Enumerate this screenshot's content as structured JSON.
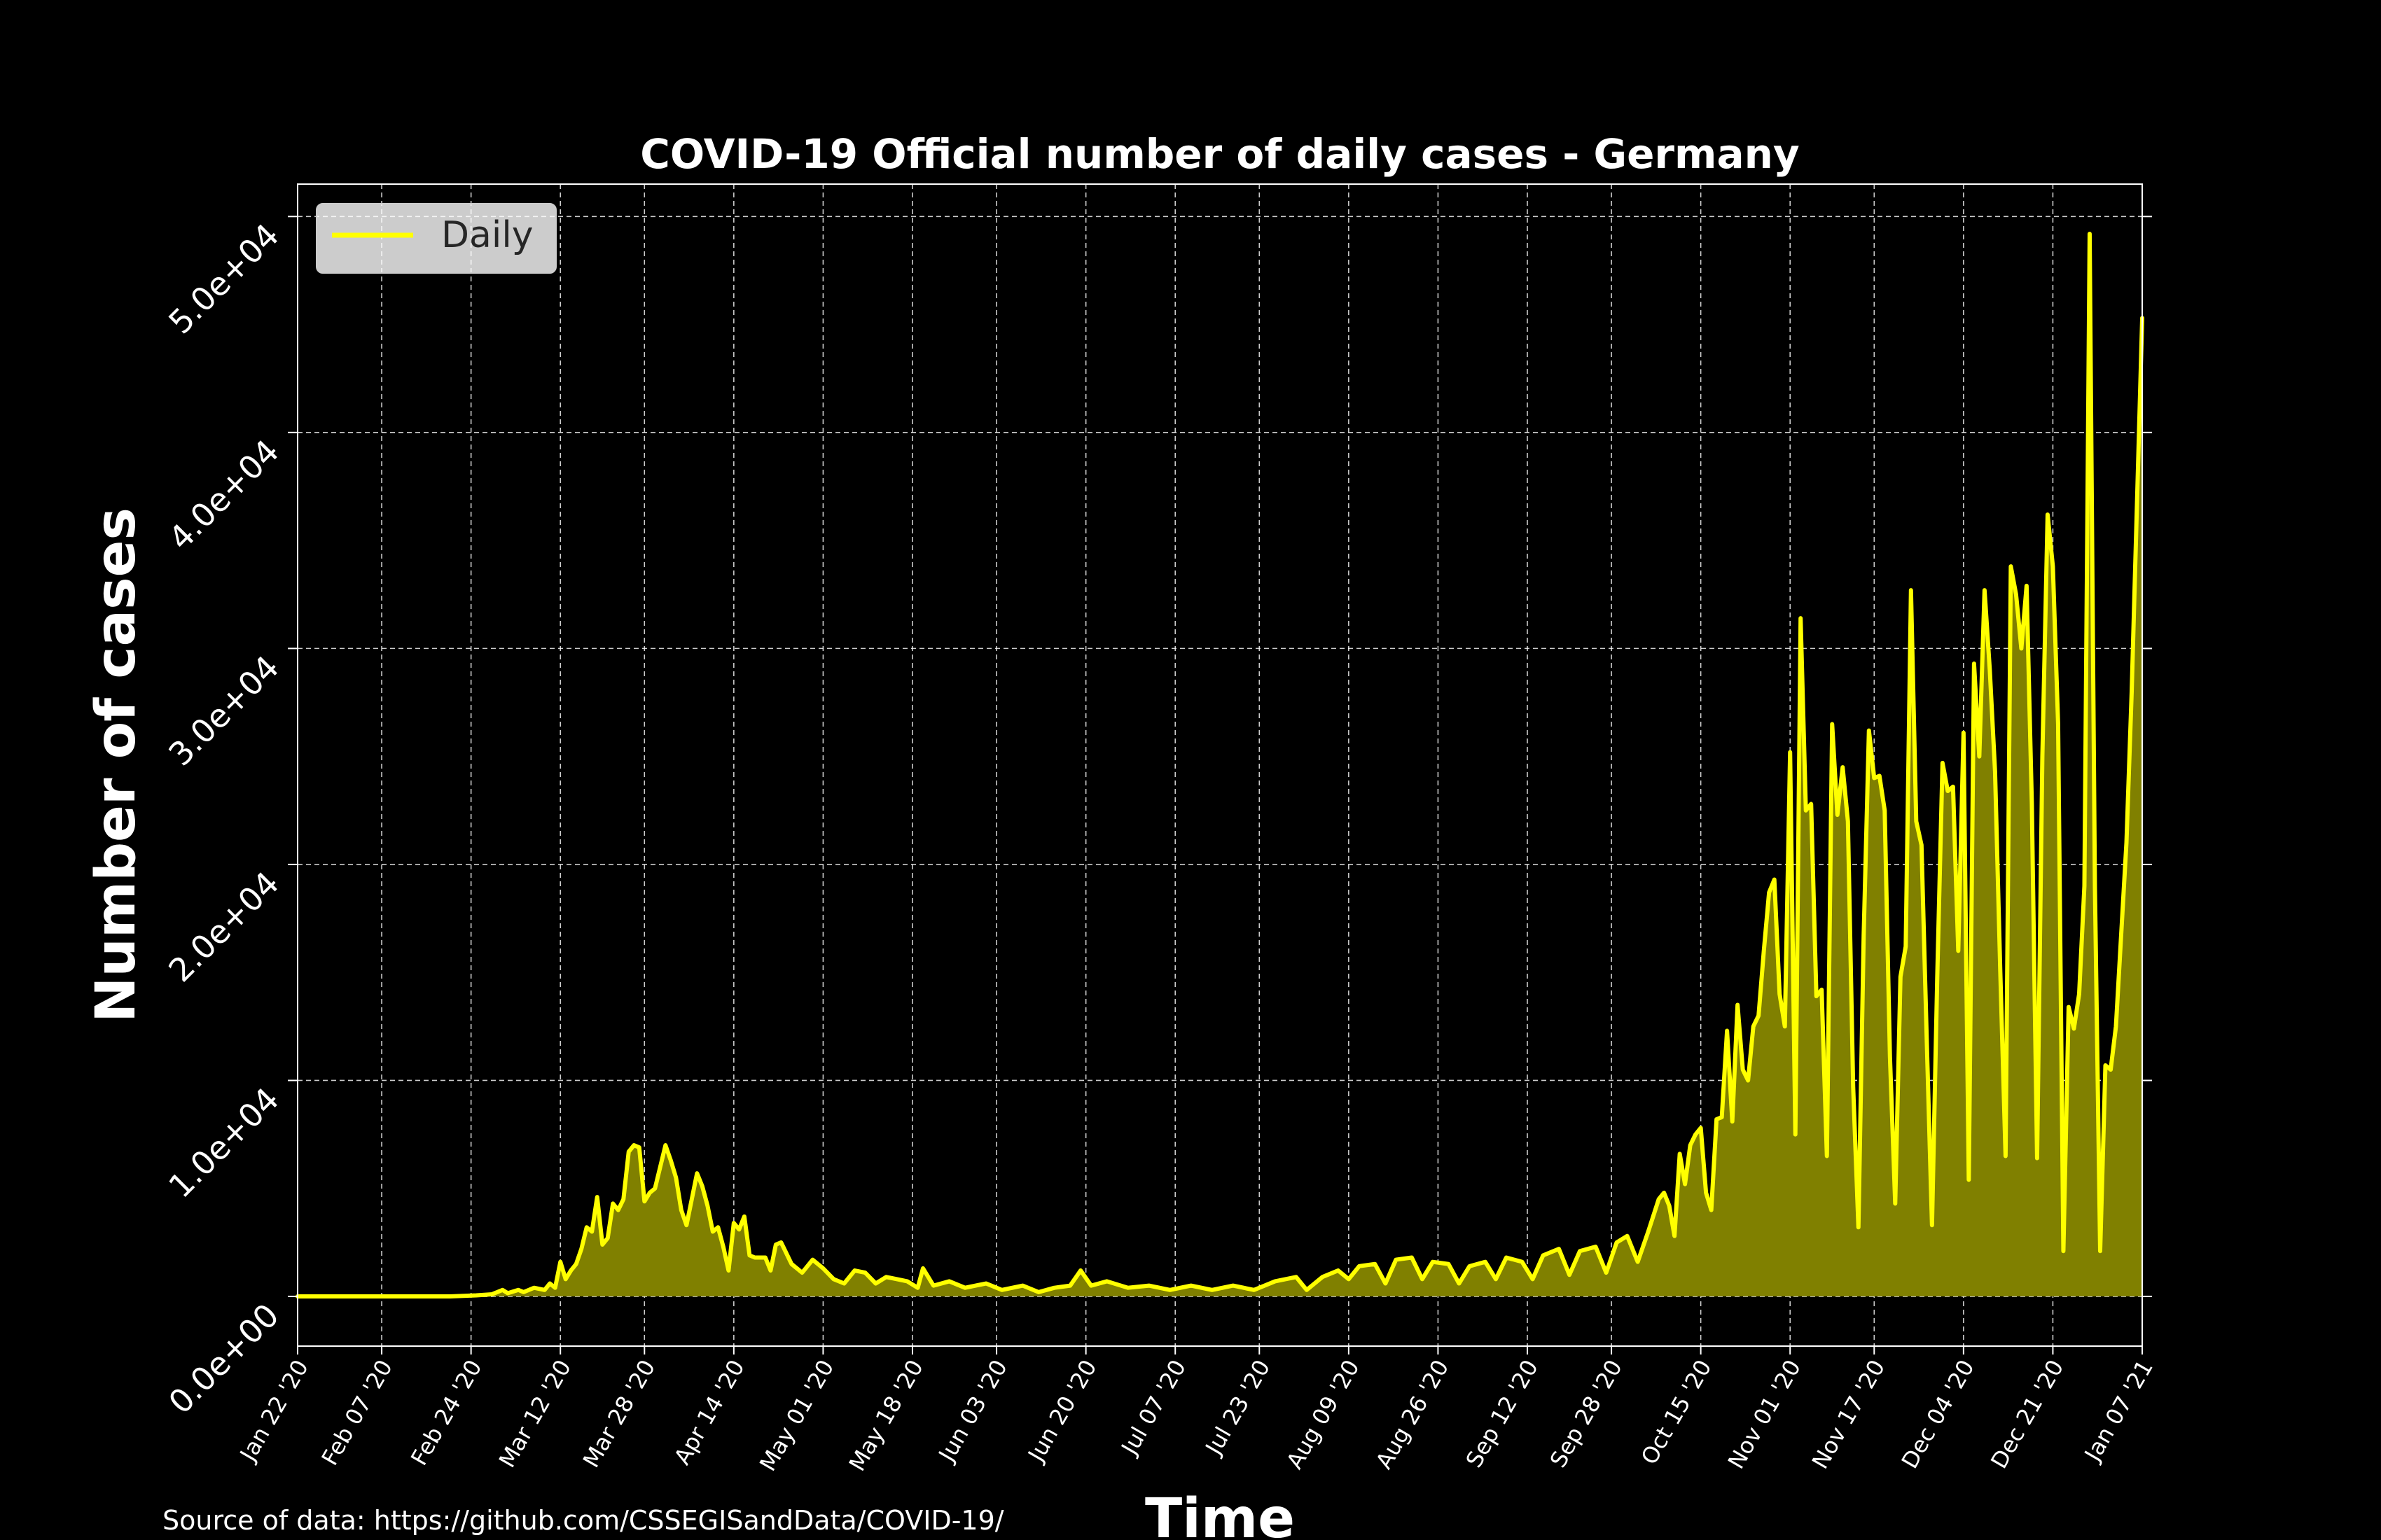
{
  "source_note": "Source of data: https://github.com/CSSEGISandData/COVID-19/",
  "chart_data": {
    "type": "area",
    "title": "COVID-19 Official number of daily cases - Germany",
    "xlabel": "Time",
    "ylabel": "Number of cases",
    "x_start": "2020-01-22",
    "x_end": "2021-01-07",
    "xlim": [
      "2020-01-22",
      "2021-01-07"
    ],
    "ylim": [
      -2300,
      51500
    ],
    "x_tick_labels": [
      "Jan 22 '20",
      "Feb 07 '20",
      "Feb 24 '20",
      "Mar 12 '20",
      "Mar 28 '20",
      "Apr 14 '20",
      "May 01 '20",
      "May 18 '20",
      "Jun 03 '20",
      "Jun 20 '20",
      "Jul 07 '20",
      "Jul 23 '20",
      "Aug 09 '20",
      "Aug 26 '20",
      "Sep 12 '20",
      "Sep 28 '20",
      "Oct 15 '20",
      "Nov 01 '20",
      "Nov 17 '20",
      "Dec 04 '20",
      "Dec 21 '20",
      "Jan 07 '21"
    ],
    "x_tick_dates": [
      "2020-01-22",
      "2020-02-07",
      "2020-02-24",
      "2020-03-12",
      "2020-03-28",
      "2020-04-14",
      "2020-05-01",
      "2020-05-18",
      "2020-06-03",
      "2020-06-20",
      "2020-07-07",
      "2020-07-23",
      "2020-08-09",
      "2020-08-26",
      "2020-09-12",
      "2020-09-28",
      "2020-10-15",
      "2020-11-01",
      "2020-11-17",
      "2020-12-04",
      "2020-12-21",
      "2021-01-07"
    ],
    "y_ticks": [
      0,
      10000,
      20000,
      30000,
      40000,
      50000
    ],
    "y_tick_labels": [
      "0.0e+00",
      "1.0e+04",
      "2.0e+04",
      "3.0e+04",
      "4.0e+04",
      "5.0e+04"
    ],
    "grid": true,
    "legend": "top-left",
    "series": [
      {
        "name": "Daily",
        "line_color": "#ffff00",
        "fill_color": "#808000",
        "points": [
          [
            "2020-01-22",
            0
          ],
          [
            "2020-02-20",
            0
          ],
          [
            "2020-02-25",
            50
          ],
          [
            "2020-02-28",
            100
          ],
          [
            "2020-03-01",
            300
          ],
          [
            "2020-03-02",
            150
          ],
          [
            "2020-03-04",
            300
          ],
          [
            "2020-03-05",
            200
          ],
          [
            "2020-03-07",
            400
          ],
          [
            "2020-03-09",
            300
          ],
          [
            "2020-03-10",
            600
          ],
          [
            "2020-03-11",
            400
          ],
          [
            "2020-03-12",
            1600
          ],
          [
            "2020-03-13",
            800
          ],
          [
            "2020-03-14",
            1200
          ],
          [
            "2020-03-15",
            1500
          ],
          [
            "2020-03-16",
            2200
          ],
          [
            "2020-03-17",
            3200
          ],
          [
            "2020-03-18",
            3000
          ],
          [
            "2020-03-19",
            4600
          ],
          [
            "2020-03-20",
            2400
          ],
          [
            "2020-03-21",
            2700
          ],
          [
            "2020-03-22",
            4300
          ],
          [
            "2020-03-23",
            4000
          ],
          [
            "2020-03-24",
            4500
          ],
          [
            "2020-03-25",
            6700
          ],
          [
            "2020-03-26",
            7000
          ],
          [
            "2020-03-27",
            6900
          ],
          [
            "2020-03-28",
            4400
          ],
          [
            "2020-03-29",
            4800
          ],
          [
            "2020-03-30",
            5000
          ],
          [
            "2020-03-31",
            6000
          ],
          [
            "2020-04-01",
            7000
          ],
          [
            "2020-04-02",
            6300
          ],
          [
            "2020-04-03",
            5500
          ],
          [
            "2020-04-04",
            4000
          ],
          [
            "2020-04-05",
            3300
          ],
          [
            "2020-04-06",
            4500
          ],
          [
            "2020-04-07",
            5700
          ],
          [
            "2020-04-08",
            5100
          ],
          [
            "2020-04-09",
            4200
          ],
          [
            "2020-04-10",
            3000
          ],
          [
            "2020-04-11",
            3200
          ],
          [
            "2020-04-12",
            2300
          ],
          [
            "2020-04-13",
            1200
          ],
          [
            "2020-04-14",
            3400
          ],
          [
            "2020-04-15",
            3100
          ],
          [
            "2020-04-16",
            3700
          ],
          [
            "2020-04-17",
            1900
          ],
          [
            "2020-04-18",
            1800
          ],
          [
            "2020-04-20",
            1800
          ],
          [
            "2020-04-21",
            1200
          ],
          [
            "2020-04-22",
            2400
          ],
          [
            "2020-04-23",
            2500
          ],
          [
            "2020-04-25",
            1500
          ],
          [
            "2020-04-27",
            1100
          ],
          [
            "2020-04-29",
            1700
          ],
          [
            "2020-05-01",
            1300
          ],
          [
            "2020-05-03",
            800
          ],
          [
            "2020-05-05",
            600
          ],
          [
            "2020-05-07",
            1200
          ],
          [
            "2020-05-09",
            1100
          ],
          [
            "2020-05-11",
            600
          ],
          [
            "2020-05-13",
            900
          ],
          [
            "2020-05-15",
            800
          ],
          [
            "2020-05-17",
            700
          ],
          [
            "2020-05-19",
            400
          ],
          [
            "2020-05-20",
            1300
          ],
          [
            "2020-05-22",
            500
          ],
          [
            "2020-05-25",
            700
          ],
          [
            "2020-05-28",
            400
          ],
          [
            "2020-06-01",
            600
          ],
          [
            "2020-06-04",
            300
          ],
          [
            "2020-06-08",
            500
          ],
          [
            "2020-06-11",
            200
          ],
          [
            "2020-06-14",
            400
          ],
          [
            "2020-06-17",
            500
          ],
          [
            "2020-06-19",
            1200
          ],
          [
            "2020-06-21",
            500
          ],
          [
            "2020-06-24",
            700
          ],
          [
            "2020-06-28",
            400
          ],
          [
            "2020-07-02",
            500
          ],
          [
            "2020-07-06",
            300
          ],
          [
            "2020-07-10",
            500
          ],
          [
            "2020-07-14",
            300
          ],
          [
            "2020-07-18",
            500
          ],
          [
            "2020-07-22",
            300
          ],
          [
            "2020-07-26",
            700
          ],
          [
            "2020-07-30",
            900
          ],
          [
            "2020-08-01",
            300
          ],
          [
            "2020-08-04",
            900
          ],
          [
            "2020-08-07",
            1200
          ],
          [
            "2020-08-09",
            800
          ],
          [
            "2020-08-11",
            1400
          ],
          [
            "2020-08-14",
            1500
          ],
          [
            "2020-08-16",
            600
          ],
          [
            "2020-08-18",
            1700
          ],
          [
            "2020-08-21",
            1800
          ],
          [
            "2020-08-23",
            800
          ],
          [
            "2020-08-25",
            1600
          ],
          [
            "2020-08-28",
            1500
          ],
          [
            "2020-08-30",
            600
          ],
          [
            "2020-09-01",
            1400
          ],
          [
            "2020-09-04",
            1600
          ],
          [
            "2020-09-06",
            800
          ],
          [
            "2020-09-08",
            1800
          ],
          [
            "2020-09-11",
            1600
          ],
          [
            "2020-09-13",
            800
          ],
          [
            "2020-09-15",
            1900
          ],
          [
            "2020-09-18",
            2200
          ],
          [
            "2020-09-20",
            1000
          ],
          [
            "2020-09-22",
            2100
          ],
          [
            "2020-09-25",
            2300
          ],
          [
            "2020-09-27",
            1100
          ],
          [
            "2020-09-29",
            2500
          ],
          [
            "2020-10-01",
            2800
          ],
          [
            "2020-10-03",
            1600
          ],
          [
            "2020-10-05",
            3000
          ],
          [
            "2020-10-07",
            4500
          ],
          [
            "2020-10-08",
            4800
          ],
          [
            "2020-10-09",
            4200
          ],
          [
            "2020-10-10",
            2800
          ],
          [
            "2020-10-11",
            6600
          ],
          [
            "2020-10-12",
            5200
          ],
          [
            "2020-10-13",
            7000
          ],
          [
            "2020-10-14",
            7500
          ],
          [
            "2020-10-15",
            7800
          ],
          [
            "2020-10-16",
            4800
          ],
          [
            "2020-10-17",
            4000
          ],
          [
            "2020-10-18",
            8200
          ],
          [
            "2020-10-19",
            8300
          ],
          [
            "2020-10-20",
            12300
          ],
          [
            "2020-10-21",
            8100
          ],
          [
            "2020-10-22",
            13500
          ],
          [
            "2020-10-23",
            10500
          ],
          [
            "2020-10-24",
            10000
          ],
          [
            "2020-10-25",
            12500
          ],
          [
            "2020-10-26",
            13000
          ],
          [
            "2020-10-27",
            16000
          ],
          [
            "2020-10-28",
            18700
          ],
          [
            "2020-10-29",
            19300
          ],
          [
            "2020-10-30",
            14000
          ],
          [
            "2020-10-31",
            12500
          ],
          [
            "2020-11-01",
            25200
          ],
          [
            "2020-11-02",
            7500
          ],
          [
            "2020-11-03",
            31400
          ],
          [
            "2020-11-04",
            22500
          ],
          [
            "2020-11-05",
            22800
          ],
          [
            "2020-11-06",
            13900
          ],
          [
            "2020-11-07",
            14200
          ],
          [
            "2020-11-08",
            6500
          ],
          [
            "2020-11-09",
            26500
          ],
          [
            "2020-11-10",
            22300
          ],
          [
            "2020-11-11",
            24500
          ],
          [
            "2020-11-12",
            22000
          ],
          [
            "2020-11-13",
            9700
          ],
          [
            "2020-11-14",
            3200
          ],
          [
            "2020-11-15",
            16700
          ],
          [
            "2020-11-16",
            26200
          ],
          [
            "2020-11-17",
            24000
          ],
          [
            "2020-11-18",
            24100
          ],
          [
            "2020-11-19",
            22500
          ],
          [
            "2020-11-20",
            11100
          ],
          [
            "2020-11-21",
            4300
          ],
          [
            "2020-11-22",
            14800
          ],
          [
            "2020-11-23",
            16200
          ],
          [
            "2020-11-24",
            32700
          ],
          [
            "2020-11-25",
            22000
          ],
          [
            "2020-11-26",
            20900
          ],
          [
            "2020-11-27",
            11900
          ],
          [
            "2020-11-28",
            3300
          ],
          [
            "2020-11-29",
            14800
          ],
          [
            "2020-11-30",
            24700
          ],
          [
            "2020-12-01",
            23400
          ],
          [
            "2020-12-02",
            23600
          ],
          [
            "2020-12-03",
            16000
          ],
          [
            "2020-12-04",
            26100
          ],
          [
            "2020-12-05",
            5400
          ],
          [
            "2020-12-06",
            29300
          ],
          [
            "2020-12-07",
            25000
          ],
          [
            "2020-12-08",
            32700
          ],
          [
            "2020-12-09",
            29000
          ],
          [
            "2020-12-10",
            24300
          ],
          [
            "2020-12-11",
            15000
          ],
          [
            "2020-12-12",
            6500
          ],
          [
            "2020-12-13",
            33800
          ],
          [
            "2020-12-14",
            32500
          ],
          [
            "2020-12-15",
            30000
          ],
          [
            "2020-12-16",
            32900
          ],
          [
            "2020-12-17",
            22800
          ],
          [
            "2020-12-18",
            6400
          ],
          [
            "2020-12-19",
            25000
          ],
          [
            "2020-12-20",
            36200
          ],
          [
            "2020-12-21",
            33800
          ],
          [
            "2020-12-22",
            26500
          ],
          [
            "2020-12-23",
            2100
          ],
          [
            "2020-12-24",
            13400
          ],
          [
            "2020-12-25",
            12400
          ],
          [
            "2020-12-26",
            14000
          ],
          [
            "2020-12-27",
            19000
          ],
          [
            "2020-12-28",
            49200
          ],
          [
            "2020-12-29",
            19000
          ],
          [
            "2020-12-30",
            2100
          ],
          [
            "2020-12-31",
            10700
          ],
          [
            "2021-01-01",
            10500
          ],
          [
            "2021-01-02",
            12500
          ],
          [
            "2021-01-04",
            21000
          ],
          [
            "2021-01-05",
            28000
          ],
          [
            "2021-01-07",
            45300
          ]
        ]
      }
    ]
  }
}
